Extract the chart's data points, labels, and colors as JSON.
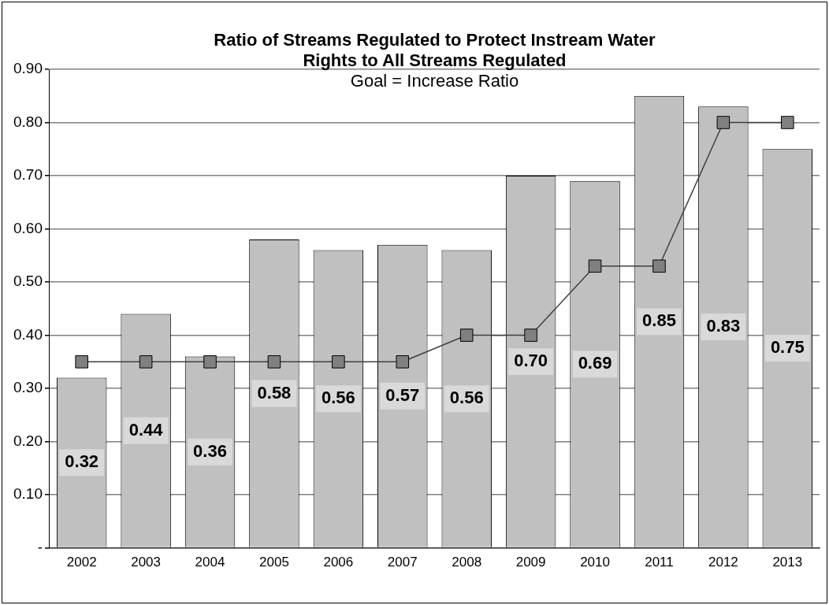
{
  "chart_data": {
    "type": "bar",
    "title": "Ratio of Streams Regulated to Protect Instream Water Rights to All Streams Regulated",
    "subtitle": "Goal = Increase Ratio",
    "categories": [
      "2002",
      "2003",
      "2004",
      "2005",
      "2006",
      "2007",
      "2008",
      "2009",
      "2010",
      "2011",
      "2012",
      "2013"
    ],
    "series": [
      {
        "color": "#c0c0c0",
        "values": [
          0.32,
          0.44,
          0.36,
          0.58,
          0.56,
          0.57,
          0.56,
          0.7,
          0.69,
          0.85,
          0.83,
          0.75
        ],
        "value_labels": [
          "0.32",
          "0.44",
          "0.36",
          "0.58",
          "0.56",
          "0.57",
          "0.56",
          "0.70",
          "0.69",
          "0.85",
          "0.83",
          "0.75"
        ]
      },
      {
        "type": "line",
        "color": "#808080",
        "values": [
          0.35,
          0.35,
          0.35,
          0.35,
          0.35,
          0.35,
          0.4,
          0.4,
          0.53,
          0.53,
          0.8,
          0.8
        ]
      }
    ],
    "ylim": [
      0,
      0.9
    ],
    "yticks": [
      {
        "value": 0,
        "label": "-"
      },
      {
        "value": 0.1,
        "label": "0.10"
      },
      {
        "value": 0.2,
        "label": "0.20"
      },
      {
        "value": 0.3,
        "label": "0.30"
      },
      {
        "value": 0.4,
        "label": "0.40"
      },
      {
        "value": 0.5,
        "label": "0.50"
      },
      {
        "value": 0.6,
        "label": "0.60"
      },
      {
        "value": 0.7,
        "label": "0.70"
      },
      {
        "value": 0.8,
        "label": "0.80"
      },
      {
        "value": 0.9,
        "label": "0.90"
      }
    ],
    "grid": "y",
    "marker": "square",
    "legend": false
  }
}
